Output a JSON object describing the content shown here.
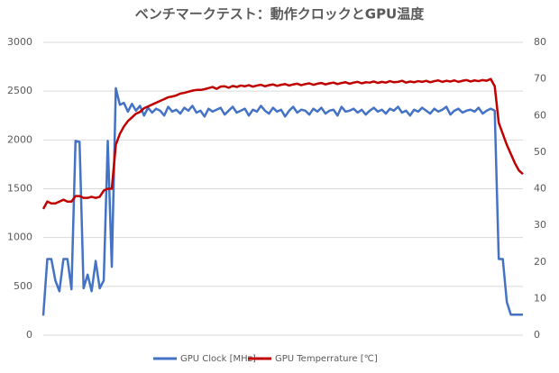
{
  "chart_data": {
    "type": "line",
    "title": "ベンチマークテスト：動作クロックとGPU温度",
    "categories": [
      null,
      null,
      null,
      null,
      null,
      null,
      null,
      null,
      null,
      null,
      null,
      null,
      null,
      null,
      null,
      null,
      null,
      null,
      null,
      null,
      null,
      null,
      null,
      null,
      null,
      null,
      null,
      null,
      null,
      null,
      null,
      null,
      null,
      null,
      null,
      null,
      null,
      null,
      null,
      null,
      null,
      null,
      null,
      null,
      null,
      null,
      null,
      null,
      null,
      null,
      null,
      null,
      null,
      null,
      null,
      null,
      null,
      null,
      null,
      null,
      null,
      null,
      null,
      null,
      null,
      null,
      null,
      null,
      null,
      null,
      null,
      null,
      null,
      null,
      null,
      null,
      null,
      null,
      null,
      null,
      null,
      null,
      null,
      null,
      null,
      null,
      null,
      null,
      null,
      null,
      null,
      null,
      null,
      null,
      null,
      null,
      null,
      null,
      null,
      null,
      null,
      null,
      null,
      null,
      null,
      null,
      null,
      null,
      null,
      null,
      null,
      null,
      null,
      null,
      null,
      null,
      null,
      null,
      null,
      null
    ],
    "series": [
      {
        "name": "GPU Clock [MHz]",
        "color": "#4472c4",
        "axis": "y",
        "values": [
          200,
          780,
          780,
          560,
          450,
          780,
          780,
          470,
          1990,
          1980,
          480,
          620,
          450,
          760,
          480,
          560,
          1990,
          700,
          2530,
          2360,
          2380,
          2290,
          2370,
          2300,
          2350,
          2250,
          2330,
          2280,
          2320,
          2300,
          2250,
          2340,
          2290,
          2310,
          2270,
          2330,
          2300,
          2350,
          2280,
          2300,
          2240,
          2320,
          2290,
          2310,
          2330,
          2260,
          2300,
          2340,
          2280,
          2300,
          2320,
          2250,
          2310,
          2290,
          2350,
          2300,
          2270,
          2330,
          2290,
          2310,
          2240,
          2300,
          2340,
          2280,
          2310,
          2300,
          2260,
          2320,
          2290,
          2330,
          2270,
          2300,
          2310,
          2250,
          2340,
          2290,
          2300,
          2320,
          2280,
          2310,
          2260,
          2300,
          2330,
          2290,
          2310,
          2270,
          2320,
          2300,
          2340,
          2280,
          2300,
          2250,
          2310,
          2290,
          2330,
          2300,
          2270,
          2320,
          2290,
          2310,
          2340,
          2260,
          2300,
          2320,
          2280,
          2300,
          2310,
          2290,
          2330,
          2270,
          2300,
          2320,
          2300,
          780,
          780,
          340,
          210,
          210,
          210,
          210
        ]
      },
      {
        "name": "GPU Temperrature [℃]",
        "color": "#c00000",
        "axis": "y2",
        "values": [
          34.5,
          36.5,
          36,
          36,
          36.5,
          37,
          36.5,
          36.5,
          38,
          38,
          37.5,
          37.5,
          37.8,
          37.5,
          37.8,
          39.5,
          40,
          40,
          52,
          55,
          57,
          58.5,
          59.5,
          60.5,
          61,
          62,
          62.5,
          63,
          63.5,
          64,
          64.5,
          65,
          65.2,
          65.5,
          66,
          66.2,
          66.5,
          66.8,
          67,
          67,
          67.2,
          67.5,
          67.8,
          67.3,
          67.9,
          68,
          67.6,
          68.1,
          67.8,
          68.2,
          68,
          68.3,
          67.9,
          68.2,
          68.4,
          68,
          68.3,
          68.5,
          68.1,
          68.4,
          68.6,
          68.2,
          68.5,
          68.7,
          68.3,
          68.6,
          68.8,
          68.4,
          68.7,
          68.9,
          68.5,
          68.8,
          69,
          68.6,
          68.9,
          69.1,
          68.7,
          69,
          69.2,
          68.8,
          69.1,
          69,
          69.3,
          68.9,
          69.2,
          69,
          69.4,
          69.1,
          69.2,
          69.5,
          69,
          69.3,
          69.1,
          69.4,
          69.2,
          69.5,
          69.1,
          69.4,
          69.6,
          69.2,
          69.5,
          69.3,
          69.6,
          69.2,
          69.5,
          69.7,
          69.3,
          69.6,
          69.4,
          69.7,
          69.5,
          70,
          68,
          58,
          55,
          52,
          49.5,
          47,
          45,
          44
        ]
      }
    ],
    "ylim": [
      0,
      3000
    ],
    "yticks": [
      0,
      500,
      1000,
      1500,
      2000,
      2500,
      3000
    ],
    "y2lim": [
      0,
      80
    ],
    "y2ticks": [
      0,
      10,
      20,
      30,
      40,
      50,
      60,
      70,
      80
    ],
    "grid": true,
    "legend": "bottom"
  }
}
